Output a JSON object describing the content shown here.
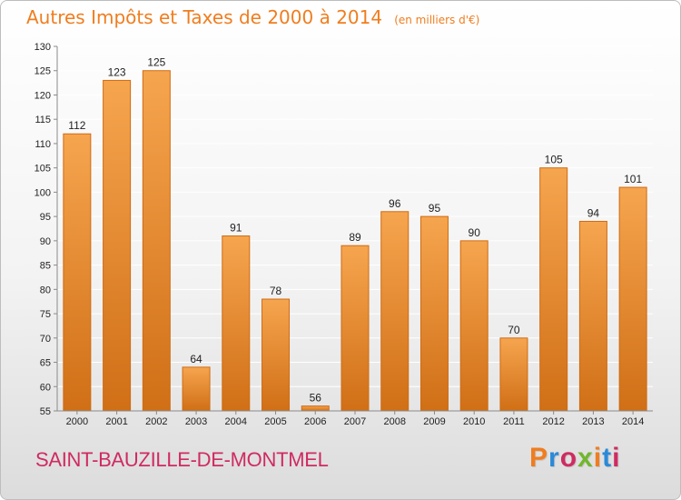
{
  "header": {
    "title": "Autres Impôts et Taxes de 2000 à 2014",
    "unit": "(en milliers d'€)"
  },
  "footer": {
    "commune": "SAINT-BAUZILLE-DE-MONTMEL",
    "logo_text": "Proxiti",
    "logo_colors": [
      "#f07d1f",
      "#2a8ad8",
      "#cf2b61",
      "#72b62d",
      "#f07d1f",
      "#2a8ad8",
      "#cf2b61"
    ]
  },
  "colors": {
    "title": "#f07d1f",
    "commune": "#cf2b61",
    "bar_light": "#f6a54f",
    "bar_dark": "#d06f16"
  },
  "chart_data": {
    "type": "bar",
    "title": "Autres Impôts et Taxes de 2000 à 2014",
    "unit": "(en milliers d'€)",
    "categories": [
      "2000",
      "2001",
      "2002",
      "2003",
      "2004",
      "2005",
      "2006",
      "2007",
      "2008",
      "2009",
      "2010",
      "2011",
      "2012",
      "2013",
      "2014"
    ],
    "values": [
      112,
      123,
      125,
      64,
      91,
      78,
      56,
      89,
      96,
      95,
      90,
      70,
      105,
      94,
      101
    ],
    "yticks": [
      55,
      60,
      65,
      70,
      75,
      80,
      85,
      90,
      95,
      100,
      105,
      110,
      115,
      120,
      125,
      130
    ],
    "ylim": [
      55,
      130
    ],
    "grid": true,
    "xlabel": "",
    "ylabel": ""
  }
}
